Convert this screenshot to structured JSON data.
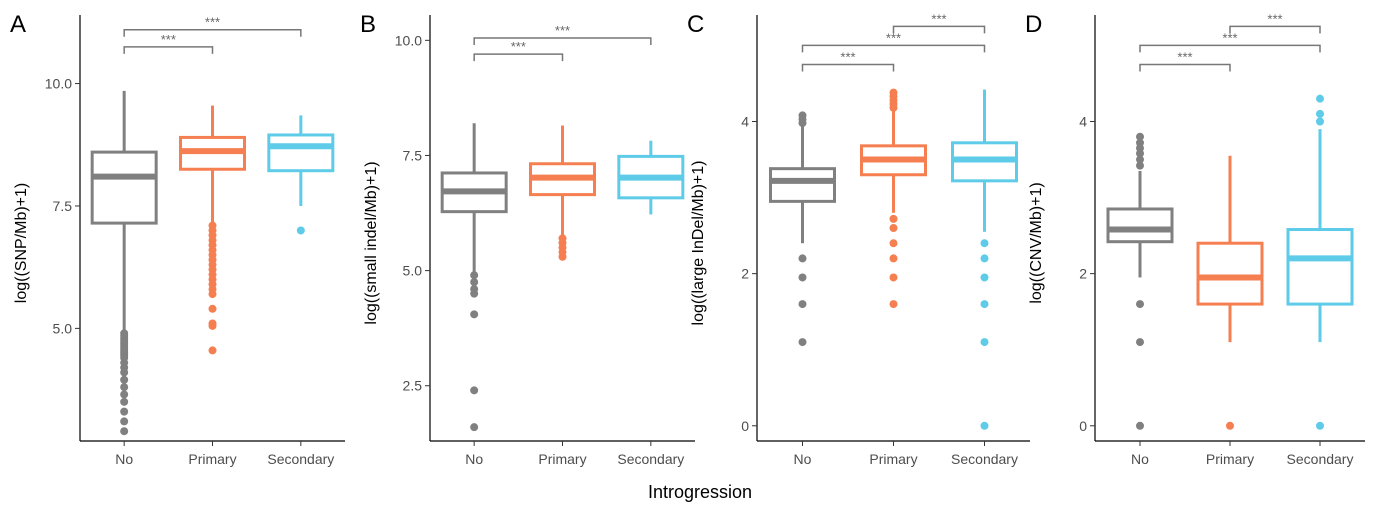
{
  "figure": {
    "xlabel": "Introgression"
  },
  "colors": {
    "No": "#808080",
    "Primary": "#f57f50",
    "Secondary": "#5ecbe8",
    "bracket": "#777777"
  },
  "chart_data": [
    {
      "type": "box",
      "letter": "A",
      "ylabel": "log((SNP/Mb)+1)",
      "categories": [
        "No",
        "Primary",
        "Secondary"
      ],
      "ylim": [
        2.7,
        11.4
      ],
      "yticks": [
        5.0,
        7.5,
        10.0
      ],
      "ytick_labels": [
        "5.0",
        "7.5",
        "10.0"
      ],
      "boxes": [
        {
          "group": "No",
          "q1": 7.15,
          "median": 8.1,
          "q3": 8.6,
          "wlow": 4.95,
          "whigh": 9.85,
          "outliers": [
            4.9,
            4.85,
            4.8,
            4.75,
            4.7,
            4.65,
            4.6,
            4.55,
            4.5,
            4.45,
            4.4,
            4.3,
            4.2,
            4.1,
            3.95,
            3.8,
            3.65,
            3.5,
            3.3,
            3.1,
            2.9
          ]
        },
        {
          "group": "Primary",
          "q1": 8.25,
          "median": 8.62,
          "q3": 8.9,
          "wlow": 7.15,
          "whigh": 9.55,
          "outliers": [
            7.1,
            7.0,
            6.9,
            6.8,
            6.7,
            6.6,
            6.5,
            6.4,
            6.3,
            6.2,
            6.1,
            6.0,
            5.9,
            5.8,
            5.7,
            5.4,
            5.1,
            5.05,
            4.55
          ]
        },
        {
          "group": "Secondary",
          "q1": 8.22,
          "median": 8.72,
          "q3": 8.95,
          "wlow": 7.5,
          "whigh": 9.35,
          "outliers": [
            7.0
          ]
        }
      ],
      "comparisons": [
        {
          "from": "No",
          "to": "Primary",
          "y": 10.75,
          "label": "***"
        },
        {
          "from": "No",
          "to": "Secondary",
          "y": 11.1,
          "label": "***"
        }
      ]
    },
    {
      "type": "box",
      "letter": "B",
      "ylabel": "log((small indel/Mb)+1)",
      "categories": [
        "No",
        "Primary",
        "Secondary"
      ],
      "ylim": [
        1.3,
        10.55
      ],
      "yticks": [
        2.5,
        5.0,
        7.5,
        10.0
      ],
      "ytick_labels": [
        "2.5",
        "5.0",
        "7.5",
        "10.0"
      ],
      "boxes": [
        {
          "group": "No",
          "q1": 6.28,
          "median": 6.72,
          "q3": 7.12,
          "wlow": 4.95,
          "whigh": 8.2,
          "outliers": [
            4.9,
            4.75,
            4.6,
            4.5,
            4.05,
            2.4,
            1.6
          ]
        },
        {
          "group": "Primary",
          "q1": 6.65,
          "median": 7.02,
          "q3": 7.32,
          "wlow": 5.75,
          "whigh": 8.15,
          "outliers": [
            5.7,
            5.6,
            5.5,
            5.4,
            5.3
          ]
        },
        {
          "group": "Secondary",
          "q1": 6.58,
          "median": 7.02,
          "q3": 7.48,
          "wlow": 6.22,
          "whigh": 7.82,
          "outliers": []
        }
      ],
      "comparisons": [
        {
          "from": "No",
          "to": "Primary",
          "y": 9.7,
          "label": "***"
        },
        {
          "from": "No",
          "to": "Secondary",
          "y": 10.05,
          "label": "***"
        }
      ]
    },
    {
      "type": "box",
      "letter": "C",
      "ylabel": "log((large InDel/Mb)+1)",
      "categories": [
        "No",
        "Primary",
        "Secondary"
      ],
      "ylim": [
        -0.2,
        5.4
      ],
      "yticks": [
        0,
        2,
        4
      ],
      "ytick_labels": [
        "0",
        "2",
        "4"
      ],
      "boxes": [
        {
          "group": "No",
          "q1": 2.95,
          "median": 3.22,
          "q3": 3.38,
          "wlow": 2.4,
          "whigh": 3.95,
          "outliers": [
            4.08,
            4.03,
            3.98,
            2.2,
            1.95,
            1.6,
            1.1
          ]
        },
        {
          "group": "Primary",
          "q1": 3.3,
          "median": 3.5,
          "q3": 3.68,
          "wlow": 2.8,
          "whigh": 4.15,
          "outliers": [
            4.38,
            4.33,
            4.28,
            4.23,
            4.18,
            2.72,
            2.6,
            2.4,
            2.2,
            1.95,
            1.6
          ]
        },
        {
          "group": "Secondary",
          "q1": 3.22,
          "median": 3.5,
          "q3": 3.72,
          "wlow": 2.55,
          "whigh": 4.42,
          "outliers": [
            2.4,
            2.2,
            1.95,
            1.6,
            1.1,
            0
          ]
        }
      ],
      "comparisons": [
        {
          "from": "No",
          "to": "Primary",
          "y": 4.75,
          "label": "***"
        },
        {
          "from": "No",
          "to": "Secondary",
          "y": 5.0,
          "label": "***"
        },
        {
          "from": "Primary",
          "to": "Secondary",
          "y": 5.25,
          "label": "***"
        }
      ]
    },
    {
      "type": "box",
      "letter": "D",
      "ylabel": "log((CNV/Mb)+1)",
      "categories": [
        "No",
        "Primary",
        "Secondary"
      ],
      "ylim": [
        -0.2,
        5.4
      ],
      "yticks": [
        0,
        2,
        4
      ],
      "ytick_labels": [
        "0",
        "2",
        "4"
      ],
      "boxes": [
        {
          "group": "No",
          "q1": 2.42,
          "median": 2.58,
          "q3": 2.85,
          "wlow": 1.95,
          "whigh": 3.35,
          "outliers": [
            3.8,
            3.72,
            3.65,
            3.58,
            3.5,
            3.42,
            1.6,
            1.1,
            0
          ]
        },
        {
          "group": "Primary",
          "q1": 1.6,
          "median": 1.95,
          "q3": 2.4,
          "wlow": 1.1,
          "whigh": 3.55,
          "outliers": [
            0
          ]
        },
        {
          "group": "Secondary",
          "q1": 1.6,
          "median": 2.2,
          "q3": 2.58,
          "wlow": 1.1,
          "whigh": 3.9,
          "outliers": [
            4.3,
            4.1,
            4.0,
            0
          ]
        }
      ],
      "comparisons": [
        {
          "from": "No",
          "to": "Primary",
          "y": 4.75,
          "label": "***"
        },
        {
          "from": "No",
          "to": "Secondary",
          "y": 5.0,
          "label": "***"
        },
        {
          "from": "Primary",
          "to": "Secondary",
          "y": 5.25,
          "label": "***"
        }
      ]
    }
  ]
}
